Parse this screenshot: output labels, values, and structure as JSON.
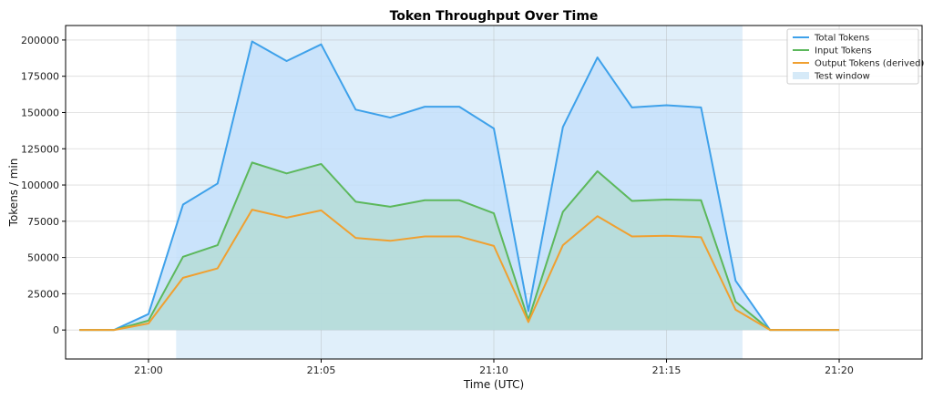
{
  "chart_data": {
    "type": "line",
    "title": "Token Throughput Over Time",
    "xlabel": "Time (UTC)",
    "ylabel": "Tokens / min",
    "x_range": [
      -2.4,
      22.4
    ],
    "ylim": [
      -20000,
      210000
    ],
    "x_ticks": [
      {
        "value": 0,
        "label": "21:00"
      },
      {
        "value": 5,
        "label": "21:05"
      },
      {
        "value": 10,
        "label": "21:10"
      },
      {
        "value": 15,
        "label": "21:15"
      },
      {
        "value": 20,
        "label": "21:20"
      }
    ],
    "y_ticks": [
      0,
      25000,
      50000,
      75000,
      100000,
      125000,
      150000,
      175000,
      200000
    ],
    "grid": true,
    "legend_position": "top-right",
    "test_window": {
      "name": "Test window",
      "start": 0.8,
      "end": 17.2,
      "color": "#d6eaf8"
    },
    "x": [
      -2,
      -1,
      0,
      1,
      2,
      3,
      4,
      5,
      6,
      7,
      8,
      9,
      10,
      11,
      12,
      13,
      14,
      15,
      16,
      17,
      18,
      19,
      20
    ],
    "series": [
      {
        "name": "Total Tokens",
        "color": "#3ea1ea",
        "fill": "#c6e1fa",
        "values": [
          0,
          0,
          11000,
          86500,
          101000,
          199000,
          185500,
          197000,
          152000,
          146500,
          154000,
          154000,
          139000,
          13000,
          140000,
          188000,
          153500,
          155000,
          153500,
          34000,
          0,
          0,
          0
        ]
      },
      {
        "name": "Input Tokens",
        "color": "#5cb85c",
        "fill": "#b3dbd5",
        "values": [
          0,
          0,
          6500,
          50500,
          58500,
          115500,
          108000,
          114500,
          88500,
          85000,
          89500,
          89500,
          80500,
          7000,
          81500,
          109500,
          89000,
          90000,
          89500,
          19500,
          0,
          0,
          0
        ]
      },
      {
        "name": "Output Tokens (derived)",
        "color": "#f0a030",
        "fill": "none",
        "values": [
          0,
          0,
          4500,
          36000,
          42500,
          83000,
          77500,
          82500,
          63500,
          61500,
          64500,
          64500,
          58000,
          5500,
          58500,
          78500,
          64500,
          65000,
          64000,
          14000,
          0,
          0,
          0
        ]
      }
    ]
  }
}
